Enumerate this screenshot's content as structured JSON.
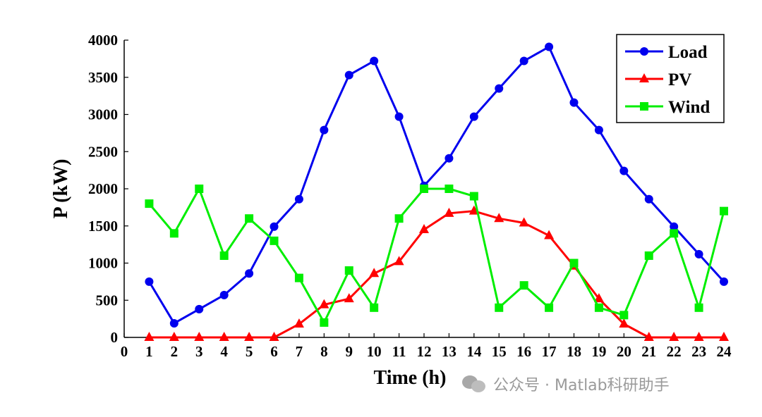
{
  "chart_data": {
    "type": "line",
    "xlabel": "Time (h)",
    "ylabel": "P (kW)",
    "xlim": [
      0,
      24
    ],
    "ylim": [
      0,
      4000
    ],
    "x_ticks": [
      "0",
      "1",
      "2",
      "3",
      "4",
      "5",
      "6",
      "7",
      "8",
      "9",
      "10",
      "11",
      "12",
      "13",
      "14",
      "15",
      "16",
      "17",
      "18",
      "19",
      "20",
      "21",
      "22",
      "23",
      "24"
    ],
    "y_ticks": [
      "0",
      "500",
      "1000",
      "1500",
      "2000",
      "2500",
      "3000",
      "3500",
      "4000"
    ],
    "y_tick_values": [
      0,
      500,
      1000,
      1500,
      2000,
      2500,
      3000,
      3500,
      4000
    ],
    "x": [
      1,
      2,
      3,
      4,
      5,
      6,
      7,
      8,
      9,
      10,
      11,
      12,
      13,
      14,
      15,
      16,
      17,
      18,
      19,
      20,
      21,
      22,
      23,
      24
    ],
    "grid": false,
    "legend_position": "top-right",
    "series": [
      {
        "name": "Load",
        "color": "#0000ee",
        "marker": "circle",
        "values": [
          750,
          190,
          380,
          570,
          860,
          1490,
          1860,
          2790,
          3530,
          3720,
          2970,
          2040,
          2410,
          2970,
          3350,
          3720,
          3910,
          3160,
          2790,
          2240,
          1860,
          1490,
          1120,
          750
        ]
      },
      {
        "name": "PV",
        "color": "#ff0000",
        "marker": "triangle",
        "values": [
          0,
          0,
          0,
          0,
          0,
          0,
          180,
          440,
          520,
          860,
          1020,
          1450,
          1670,
          1700,
          1600,
          1540,
          1370,
          960,
          520,
          180,
          0,
          0,
          0,
          0
        ]
      },
      {
        "name": "Wind",
        "color": "#00ee00",
        "marker": "square",
        "values": [
          1800,
          1400,
          2000,
          1100,
          1600,
          1300,
          800,
          200,
          900,
          400,
          1600,
          2000,
          2000,
          1900,
          400,
          700,
          400,
          1000,
          400,
          300,
          1100,
          1400,
          400,
          1700
        ]
      }
    ]
  },
  "watermark": {
    "icon": "wechat-icon",
    "text": "公众号 · Matlab科研助手"
  }
}
